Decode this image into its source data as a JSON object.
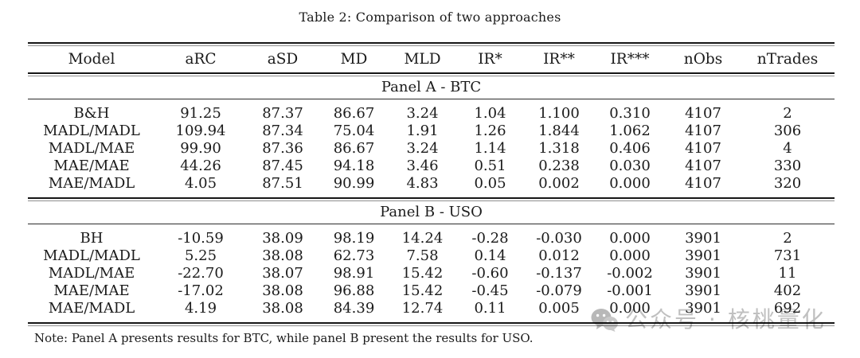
{
  "title": "Table 2: Comparison of two approaches",
  "table": {
    "columns": [
      "Model",
      "aRC",
      "aSD",
      "MD",
      "MLD",
      "IR*",
      "IR**",
      "IR***",
      "nObs",
      "nTrades"
    ],
    "panels": [
      {
        "label": "Panel A - BTC",
        "rows": [
          [
            "B&H",
            "91.25",
            "87.37",
            "86.67",
            "3.24",
            "1.04",
            "1.100",
            "0.310",
            "4107",
            "2"
          ],
          [
            "MADL/MADL",
            "109.94",
            "87.34",
            "75.04",
            "1.91",
            "1.26",
            "1.844",
            "1.062",
            "4107",
            "306"
          ],
          [
            "MADL/MAE",
            "99.90",
            "87.36",
            "86.67",
            "3.24",
            "1.14",
            "1.318",
            "0.406",
            "4107",
            "4"
          ],
          [
            "MAE/MAE",
            "44.26",
            "87.45",
            "94.18",
            "3.46",
            "0.51",
            "0.238",
            "0.030",
            "4107",
            "330"
          ],
          [
            "MAE/MADL",
            "4.05",
            "87.51",
            "90.99",
            "4.83",
            "0.05",
            "0.002",
            "0.000",
            "4107",
            "320"
          ]
        ]
      },
      {
        "label": "Panel B - USO",
        "rows": [
          [
            "BH",
            "-10.59",
            "38.09",
            "98.19",
            "14.24",
            "-0.28",
            "-0.030",
            "0.000",
            "3901",
            "2"
          ],
          [
            "MADL/MADL",
            "5.25",
            "38.08",
            "62.73",
            "7.58",
            "0.14",
            "0.012",
            "0.000",
            "3901",
            "731"
          ],
          [
            "MADL/MAE",
            "-22.70",
            "38.07",
            "98.91",
            "15.42",
            "-0.60",
            "-0.137",
            "-0.002",
            "3901",
            "11"
          ],
          [
            "MAE/MAE",
            "-17.02",
            "38.08",
            "96.88",
            "15.42",
            "-0.45",
            "-0.079",
            "-0.001",
            "3901",
            "402"
          ],
          [
            "MAE/MADL",
            "4.19",
            "38.08",
            "84.39",
            "12.74",
            "0.11",
            "0.005",
            "0.000",
            "3901",
            "692"
          ]
        ]
      }
    ]
  },
  "note": "Note: Panel A presents results for BTC, while panel B present the results for USO.",
  "watermark": {
    "icon": "wechat-icon",
    "text": "公众号 · 核桃量化",
    "color": "#b2b2b2"
  },
  "colors": {
    "text": "#1b1b1b",
    "rule_heavy": "#161616",
    "rule_light": "#8f8f8f",
    "background": "#ffffff"
  }
}
